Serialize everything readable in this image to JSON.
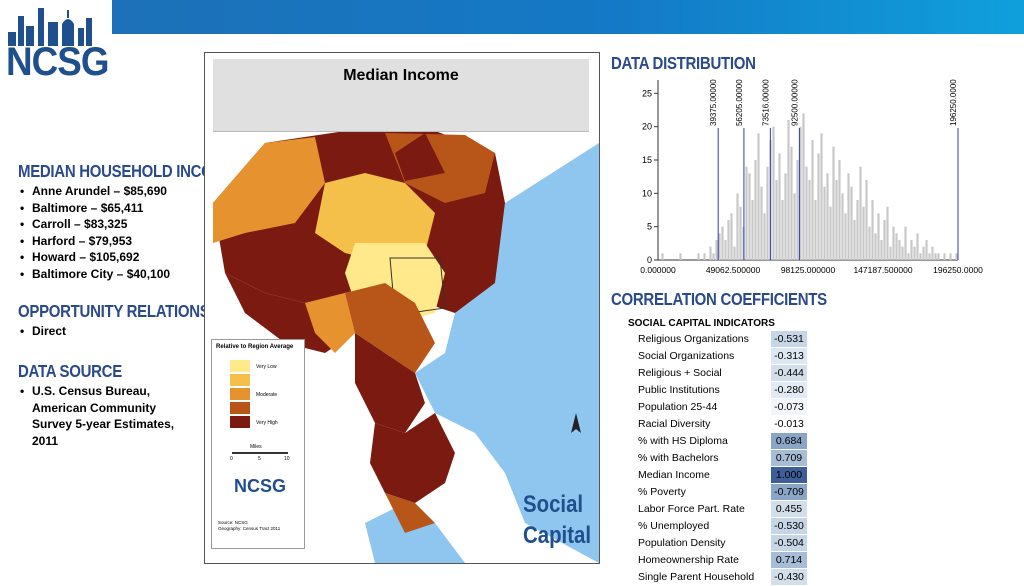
{
  "brand": {
    "logo_text": "NCSG",
    "accent": "#2a4a8a"
  },
  "left": {
    "income": {
      "heading": "MEDIAN HOUSEHOLD INCOME",
      "items": [
        "Anne Arundel – $85,690",
        "Baltimore – $65,411",
        "Carroll – $83,325",
        "Harford – $79,953",
        "Howard – $105,692",
        "Baltimore City – $40,100"
      ]
    },
    "opportunity": {
      "heading": "OPPORTUNITY RELATIONSHIP",
      "items": [
        "Direct"
      ]
    },
    "source": {
      "heading": "DATA SOURCE",
      "items": [
        "U.S. Census Bureau, American Community Survey 5-year Estimates, 2011"
      ]
    }
  },
  "map": {
    "title": "Median Income",
    "legend_title": "Relative to Region Average",
    "legend_labels": [
      "Very Low",
      "Moderate",
      "Very High"
    ],
    "scale_label": "Miles",
    "scale_ticks": [
      "0",
      "5",
      "10"
    ],
    "logo_text": "NCSG",
    "source_lines": [
      "Source: NCSG",
      "Geography: Census Tract 2011"
    ],
    "social_capital": [
      "Social",
      "Capital"
    ],
    "colors": [
      "#ffe98a",
      "#f5c04a",
      "#e6922e",
      "#b8561a",
      "#7a1a10"
    ],
    "water": "#8fc6ef"
  },
  "distribution": {
    "heading": "DATA DISTRIBUTION",
    "breaks": [
      "39375.00000",
      "56205.00000",
      "73516.00000",
      "92500.00000",
      "196250.0000"
    ],
    "break_values": [
      39375,
      56205,
      73516,
      92500,
      196250
    ]
  },
  "chart_data": {
    "type": "bar",
    "x_tick_labels": [
      "0.000000",
      "49062.500000",
      "98125.000000",
      "147187.500000",
      "196250.0000"
    ],
    "x_range": [
      0,
      196250
    ],
    "y_ticks": [
      0,
      5,
      10,
      15,
      20,
      25
    ],
    "y_range": [
      0,
      27
    ],
    "bin_count": 100,
    "values": [
      0,
      1,
      0,
      0,
      0,
      0,
      0,
      1,
      0,
      0,
      0,
      0,
      0,
      1,
      0,
      1,
      0,
      2,
      1,
      3,
      4,
      5,
      3,
      6,
      7,
      2,
      10,
      8,
      5,
      14,
      13,
      9,
      15,
      19,
      11,
      7,
      14,
      18,
      20,
      12,
      16,
      9,
      13,
      21,
      17,
      10,
      15,
      20,
      22,
      14,
      12,
      18,
      9,
      16,
      19,
      11,
      13,
      8,
      17,
      12,
      15,
      10,
      7,
      13,
      11,
      6,
      9,
      14,
      8,
      12,
      5,
      9,
      4,
      7,
      3,
      6,
      8,
      2,
      5,
      4,
      3,
      2,
      5,
      1,
      3,
      2,
      4,
      1,
      2,
      3,
      1,
      2,
      1,
      1,
      0,
      1,
      0,
      1,
      0,
      1
    ]
  },
  "correlation": {
    "heading": "CORRELATION COEFFICIENTS",
    "table_header": "SOCIAL CAPITAL INDICATORS",
    "rows": [
      {
        "label": "Religious Organizations",
        "value": "-0.531",
        "bg": "#c6d6e6"
      },
      {
        "label": "Social Organizations",
        "value": "-0.313",
        "bg": "#dde7f1"
      },
      {
        "label": "Religious + Social",
        "value": "-0.444",
        "bg": "#d2deea"
      },
      {
        "label": "Public Institutions",
        "value": "-0.280",
        "bg": "#e2eaf3"
      },
      {
        "label": "Population 25-44",
        "value": "-0.073",
        "bg": "#f2f5f9"
      },
      {
        "label": "Racial Diversity",
        "value": "-0.013",
        "bg": "#ffffff"
      },
      {
        "label": "% with HS Diploma",
        "value": "0.684",
        "bg": "#8aa5c6"
      },
      {
        "label": "% with Bachelors",
        "value": "0.709",
        "bg": "#a7bdd6"
      },
      {
        "label": "Median Income",
        "value": "1.000",
        "bg": "#3e5e99"
      },
      {
        "label": "% Poverty",
        "value": "-0.709",
        "bg": "#8aa5c6"
      },
      {
        "label": "Labor Force Part. Rate",
        "value": "0.455",
        "bg": "#d2deea"
      },
      {
        "label": "% Unemployed",
        "value": "-0.530",
        "bg": "#c6d6e6"
      },
      {
        "label": "Population Density",
        "value": "-0.504",
        "bg": "#c6d6e6"
      },
      {
        "label": "Homeownership Rate",
        "value": "0.714",
        "bg": "#a7bdd6"
      },
      {
        "label": "Single Parent Household",
        "value": "-0.430",
        "bg": "#d2deea"
      }
    ]
  }
}
